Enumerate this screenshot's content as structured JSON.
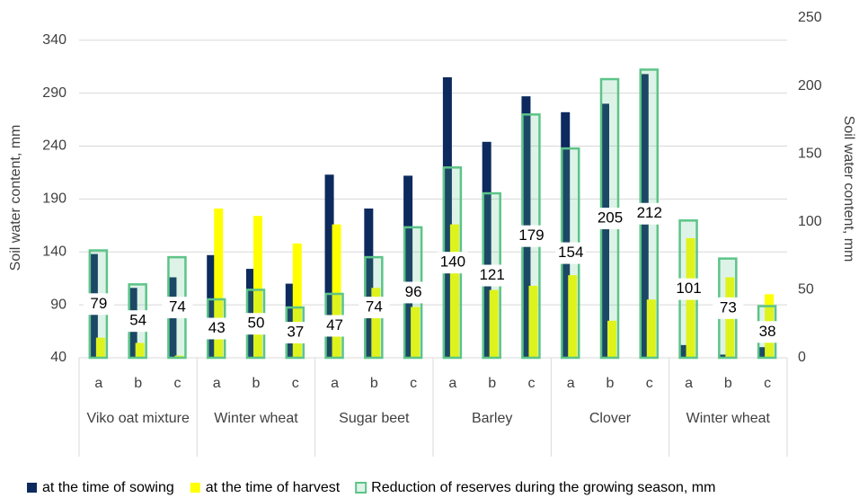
{
  "chart_data": {
    "type": "bar",
    "y_label": "Soil water content, mm",
    "y2_label": "Soil water content, mm",
    "groups": [
      "Viko oat mixture",
      "Winter wheat",
      "Sugar beet",
      "Barley",
      "Clover",
      "Winter wheat"
    ],
    "categories": [
      "a",
      "b",
      "c",
      "a",
      "b",
      "c",
      "a",
      "b",
      "c",
      "a",
      "b",
      "c",
      "a",
      "b",
      "c",
      "a",
      "b",
      "c"
    ],
    "series": [
      {
        "name": "at the time of sowing",
        "color": "#0d2a5e",
        "values": [
          138,
          106,
          116,
          137,
          124,
          110,
          213,
          181,
          212,
          305,
          244,
          287,
          272,
          280,
          308,
          52,
          43,
          50
        ]
      },
      {
        "name": "at the time of harvest",
        "color": "#ffff00",
        "values": [
          59,
          54,
          42,
          181,
          174,
          148,
          166,
          106,
          88,
          166,
          104,
          108,
          118,
          75,
          95,
          153,
          116,
          100
        ]
      },
      {
        "name": "Reduction of reserves during the growing season, mm",
        "color": "#5cc488",
        "axis": "y2",
        "values": [
          79,
          54,
          74,
          43,
          50,
          37,
          47,
          74,
          96,
          140,
          121,
          179,
          154,
          205,
          212,
          101,
          73,
          38
        ]
      }
    ],
    "ylim": [
      40,
      361
    ],
    "yticks": [
      40,
      90,
      140,
      190,
      240,
      290,
      340
    ],
    "y2lim": [
      0,
      250
    ],
    "y2ticks": [
      0,
      50,
      100,
      150,
      200,
      250
    ],
    "grid": true,
    "legend": "bottom"
  }
}
